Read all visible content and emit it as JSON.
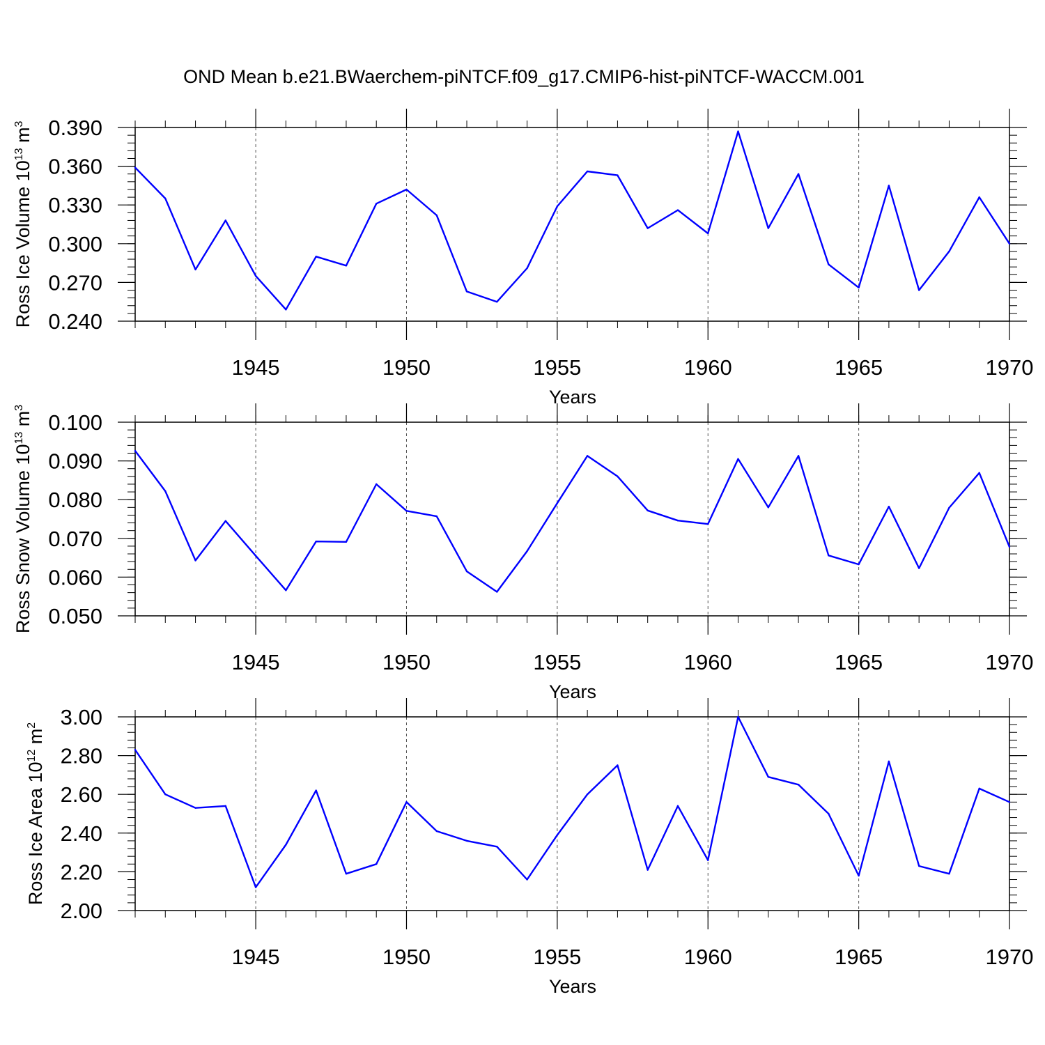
{
  "chart_data": {
    "title": "OND Mean b.e21.BWaerchem-piNTCF.f09_g17.CMIP6-hist-piNTCF-WACCM.001",
    "type": "line",
    "line_color": "#0000ff",
    "panels": [
      {
        "type": "line",
        "ylabel": {
          "base": "Ross Ice Volume 10",
          "exp": "13",
          "unit": " m",
          "unit_exp": "3"
        },
        "xlabel": "Years",
        "ylim": [
          0.24,
          0.39
        ],
        "yticks": [
          "0.390",
          "0.360",
          "0.330",
          "0.300",
          "0.270",
          "0.240"
        ],
        "xlim": [
          1941,
          1970
        ],
        "xticks": [
          "1945",
          "1950",
          "1955",
          "1960",
          "1965",
          "1970"
        ],
        "series": [
          {
            "name": "Ross Ice Volume",
            "x": [
              1941,
              1942,
              1943,
              1944,
              1945,
              1946,
              1947,
              1948,
              1949,
              1950,
              1951,
              1952,
              1953,
              1954,
              1955,
              1956,
              1957,
              1958,
              1959,
              1960,
              1961,
              1962,
              1963,
              1964,
              1965,
              1966,
              1967,
              1968,
              1969,
              1970
            ],
            "values": [
              0.359,
              0.335,
              0.28,
              0.318,
              0.275,
              0.249,
              0.29,
              0.283,
              0.331,
              0.342,
              0.322,
              0.263,
              0.255,
              0.281,
              0.329,
              0.356,
              0.353,
              0.312,
              0.326,
              0.308,
              0.387,
              0.312,
              0.354,
              0.284,
              0.266,
              0.345,
              0.264,
              0.294,
              0.336,
              0.3
            ]
          }
        ]
      },
      {
        "type": "line",
        "ylabel": {
          "base": "Ross Snow Volume 10",
          "exp": "13",
          "unit": " m",
          "unit_exp": "3"
        },
        "xlabel": "Years",
        "ylim": [
          0.05,
          0.1
        ],
        "yticks": [
          "0.100",
          "0.090",
          "0.080",
          "0.070",
          "0.060",
          "0.050"
        ],
        "xlim": [
          1941,
          1970
        ],
        "xticks": [
          "1945",
          "1950",
          "1955",
          "1960",
          "1965",
          "1970"
        ],
        "series": [
          {
            "name": "Ross Snow Volume",
            "x": [
              1941,
              1942,
              1943,
              1944,
              1945,
              1946,
              1947,
              1948,
              1949,
              1950,
              1951,
              1952,
              1953,
              1954,
              1955,
              1956,
              1957,
              1958,
              1959,
              1960,
              1961,
              1962,
              1963,
              1964,
              1965,
              1966,
              1967,
              1968,
              1969,
              1970
            ],
            "values": [
              0.0926,
              0.0822,
              0.0643,
              0.0745,
              0.0655,
              0.0566,
              0.0692,
              0.0691,
              0.084,
              0.0771,
              0.0757,
              0.0615,
              0.0562,
              0.0667,
              0.0791,
              0.0913,
              0.086,
              0.0772,
              0.0746,
              0.0737,
              0.0905,
              0.078,
              0.0913,
              0.0656,
              0.0633,
              0.0782,
              0.0623,
              0.0779,
              0.0869,
              0.0678
            ]
          }
        ]
      },
      {
        "type": "line",
        "ylabel": {
          "base": "Ross Ice Area 10",
          "exp": "12",
          "unit": " m",
          "unit_exp": "2"
        },
        "xlabel": "Years",
        "ylim": [
          2.0,
          3.0
        ],
        "yticks": [
          "3.00",
          "2.80",
          "2.60",
          "2.40",
          "2.20",
          "2.00"
        ],
        "xlim": [
          1941,
          1970
        ],
        "xticks": [
          "1945",
          "1950",
          "1955",
          "1960",
          "1965",
          "1970"
        ],
        "series": [
          {
            "name": "Ross Ice Area",
            "x": [
              1941,
              1942,
              1943,
              1944,
              1945,
              1946,
              1947,
              1948,
              1949,
              1950,
              1951,
              1952,
              1953,
              1954,
              1955,
              1956,
              1957,
              1958,
              1959,
              1960,
              1961,
              1962,
              1963,
              1964,
              1965,
              1966,
              1967,
              1968,
              1969,
              1970
            ],
            "values": [
              2.83,
              2.6,
              2.53,
              2.54,
              2.12,
              2.34,
              2.62,
              2.19,
              2.24,
              2.56,
              2.41,
              2.36,
              2.33,
              2.16,
              2.39,
              2.6,
              2.75,
              2.21,
              2.54,
              2.26,
              3.0,
              2.69,
              2.65,
              2.5,
              2.18,
              2.77,
              2.23,
              2.19,
              2.63,
              2.56
            ]
          }
        ]
      }
    ]
  }
}
